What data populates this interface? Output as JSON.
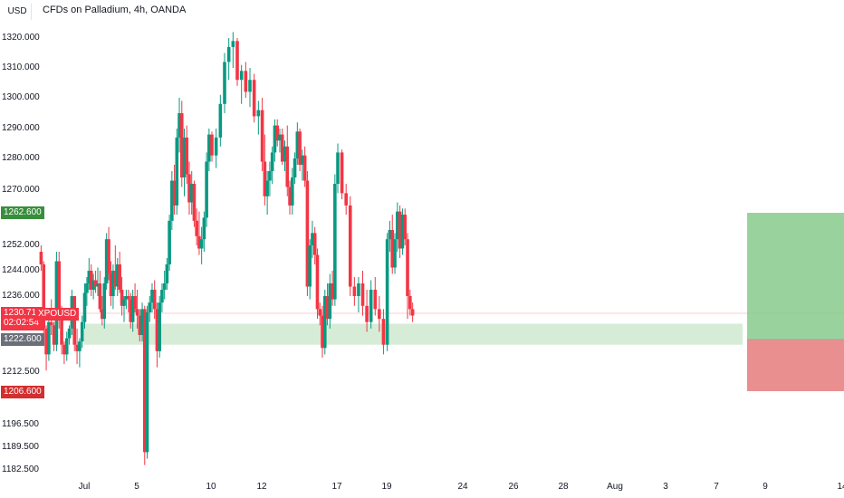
{
  "header": {
    "currency": "USD",
    "title": "CFDs on Palladium, 4h, OANDA"
  },
  "price_axis": {
    "ticks": [
      {
        "label": "1320.000",
        "value": 1320
      },
      {
        "label": "1310.000",
        "value": 1310
      },
      {
        "label": "1300.000",
        "value": 1300
      },
      {
        "label": "1290.000",
        "value": 1290
      },
      {
        "label": "1280.000",
        "value": 1280
      },
      {
        "label": "1270.000",
        "value": 1270
      },
      {
        "label": "1252.000",
        "value": 1252
      },
      {
        "label": "1244.000",
        "value": 1244
      },
      {
        "label": "1236.000",
        "value": 1236
      },
      {
        "label": "1212.500",
        "value": 1212.5
      },
      {
        "label": "1196.500",
        "value": 1196.5
      },
      {
        "label": "1189.500",
        "value": 1189.5
      },
      {
        "label": "1182.500",
        "value": 1182.5
      }
    ]
  },
  "date_axis": {
    "ticks": [
      {
        "label": "Jul",
        "day": 1
      },
      {
        "label": "5",
        "day": 5
      },
      {
        "label": "10",
        "day": 10
      },
      {
        "label": "12",
        "day": 12
      },
      {
        "label": "17",
        "day": 17
      },
      {
        "label": "19",
        "day": 19
      },
      {
        "label": "24",
        "day": 24
      },
      {
        "label": "26",
        "day": 26
      },
      {
        "label": "28",
        "day": 28
      },
      {
        "label": "Aug",
        "day": 32
      },
      {
        "label": "3",
        "day": 34
      },
      {
        "label": "7",
        "day": 38
      },
      {
        "label": "9",
        "day": 40
      },
      {
        "label": "14",
        "day": 45
      }
    ]
  },
  "tags": {
    "take_profit": "1262.600",
    "current_price": "1230.715",
    "countdown": "02:02:54",
    "symbol": "XPOUSD",
    "entry": "1222.600",
    "stop_loss": "1206.600"
  },
  "colors": {
    "up": "#089981",
    "down": "#f23645",
    "zone": "#c8e6c9",
    "profit": "#81c784",
    "loss": "#e57373"
  },
  "chart_data": {
    "type": "candlestick",
    "symbol": "XPOUSD",
    "interval": "4h",
    "candle_days_start": -1.8,
    "candle_step_days": 0.1667,
    "ohlc": [
      [
        1250,
        1252,
        1244,
        1246
      ],
      [
        1246,
        1247,
        1222,
        1226
      ],
      [
        1226,
        1227,
        1213,
        1218
      ],
      [
        1218,
        1230,
        1216,
        1228
      ],
      [
        1228,
        1235,
        1224,
        1227
      ],
      [
        1227,
        1228,
        1219,
        1221
      ],
      [
        1221,
        1250,
        1219,
        1247
      ],
      [
        1247,
        1250,
        1226,
        1229
      ],
      [
        1229,
        1233,
        1218,
        1221
      ],
      [
        1221,
        1222,
        1215,
        1218
      ],
      [
        1218,
        1225,
        1216,
        1223
      ],
      [
        1223,
        1227,
        1221,
        1226
      ],
      [
        1226,
        1238,
        1224,
        1236
      ],
      [
        1236,
        1236,
        1219,
        1221
      ],
      [
        1221,
        1226,
        1215,
        1219
      ],
      [
        1219,
        1223,
        1214,
        1222
      ],
      [
        1222,
        1230,
        1220,
        1228
      ],
      [
        1228,
        1240,
        1226,
        1237
      ],
      [
        1237,
        1242,
        1233,
        1240
      ],
      [
        1240,
        1248,
        1238,
        1244
      ],
      [
        1244,
        1246,
        1236,
        1238
      ],
      [
        1238,
        1243,
        1235,
        1241
      ],
      [
        1241,
        1244,
        1237,
        1239
      ],
      [
        1239,
        1245,
        1236,
        1240
      ],
      [
        1240,
        1244,
        1231,
        1232
      ],
      [
        1232,
        1236,
        1227,
        1229
      ],
      [
        1229,
        1242,
        1226,
        1240
      ],
      [
        1240,
        1256,
        1238,
        1254
      ],
      [
        1254,
        1258,
        1241,
        1243
      ],
      [
        1243,
        1247,
        1233,
        1236
      ],
      [
        1236,
        1246,
        1232,
        1244
      ],
      [
        1244,
        1252,
        1238,
        1239
      ],
      [
        1239,
        1248,
        1236,
        1246
      ],
      [
        1246,
        1250,
        1237,
        1238
      ],
      [
        1238,
        1242,
        1230,
        1233
      ],
      [
        1233,
        1236,
        1228,
        1235
      ],
      [
        1235,
        1238,
        1232,
        1236
      ],
      [
        1236,
        1238,
        1231,
        1235
      ],
      [
        1235,
        1237,
        1226,
        1228
      ],
      [
        1228,
        1238,
        1225,
        1236
      ],
      [
        1236,
        1240,
        1231,
        1232
      ],
      [
        1232,
        1238,
        1226,
        1230
      ],
      [
        1230,
        1232,
        1222,
        1224
      ],
      [
        1224,
        1234,
        1222,
        1232
      ],
      [
        1232,
        1233,
        1184,
        1188
      ],
      [
        1188,
        1233,
        1186,
        1231
      ],
      [
        1231,
        1236,
        1228,
        1234
      ],
      [
        1234,
        1240,
        1231,
        1238
      ],
      [
        1238,
        1241,
        1229,
        1232
      ],
      [
        1232,
        1234,
        1214,
        1219
      ],
      [
        1219,
        1236,
        1217,
        1234
      ],
      [
        1234,
        1240,
        1231,
        1238
      ],
      [
        1238,
        1244,
        1235,
        1240
      ],
      [
        1240,
        1248,
        1238,
        1246
      ],
      [
        1246,
        1262,
        1244,
        1260
      ],
      [
        1260,
        1276,
        1257,
        1273
      ],
      [
        1273,
        1278,
        1262,
        1265
      ],
      [
        1265,
        1290,
        1262,
        1287
      ],
      [
        1287,
        1300,
        1282,
        1295
      ],
      [
        1295,
        1299,
        1271,
        1274
      ],
      [
        1274,
        1290,
        1268,
        1287
      ],
      [
        1287,
        1291,
        1272,
        1275
      ],
      [
        1275,
        1279,
        1262,
        1266
      ],
      [
        1266,
        1276,
        1262,
        1272
      ],
      [
        1272,
        1273,
        1258,
        1260
      ],
      [
        1260,
        1264,
        1252,
        1255
      ],
      [
        1255,
        1263,
        1249,
        1251
      ],
      [
        1251,
        1258,
        1246,
        1254
      ],
      [
        1254,
        1263,
        1250,
        1261
      ],
      [
        1261,
        1282,
        1258,
        1279
      ],
      [
        1279,
        1290,
        1276,
        1288
      ],
      [
        1288,
        1289,
        1279,
        1281
      ],
      [
        1281,
        1290,
        1277,
        1287
      ],
      [
        1287,
        1301,
        1284,
        1298
      ],
      [
        1298,
        1315,
        1295,
        1312
      ],
      [
        1312,
        1320,
        1306,
        1317
      ],
      [
        1317,
        1322,
        1310,
        1319
      ],
      [
        1319,
        1320,
        1304,
        1306
      ],
      [
        1306,
        1311,
        1298,
        1309
      ],
      [
        1309,
        1312,
        1300,
        1302
      ],
      [
        1302,
        1310,
        1297,
        1306
      ],
      [
        1306,
        1308,
        1292,
        1294
      ],
      [
        1294,
        1299,
        1288,
        1296
      ],
      [
        1296,
        1300,
        1276,
        1279
      ],
      [
        1279,
        1288,
        1265,
        1268
      ],
      [
        1268,
        1276,
        1262,
        1273
      ],
      [
        1273,
        1279,
        1268,
        1276
      ],
      [
        1276,
        1284,
        1272,
        1282
      ],
      [
        1282,
        1293,
        1279,
        1291
      ],
      [
        1291,
        1293,
        1284,
        1286
      ],
      [
        1286,
        1290,
        1282,
        1288
      ],
      [
        1288,
        1290,
        1278,
        1279
      ],
      [
        1279,
        1286,
        1276,
        1284
      ],
      [
        1284,
        1291,
        1268,
        1271
      ],
      [
        1271,
        1273,
        1262,
        1265
      ],
      [
        1265,
        1277,
        1262,
        1274
      ],
      [
        1274,
        1282,
        1272,
        1280
      ],
      [
        1280,
        1292,
        1278,
        1289
      ],
      [
        1289,
        1290,
        1276,
        1278
      ],
      [
        1278,
        1283,
        1273,
        1281
      ],
      [
        1281,
        1284,
        1271,
        1273
      ],
      [
        1273,
        1276,
        1236,
        1239
      ],
      [
        1239,
        1254,
        1235,
        1252
      ],
      [
        1252,
        1260,
        1248,
        1256
      ],
      [
        1256,
        1258,
        1246,
        1249
      ],
      [
        1249,
        1251,
        1229,
        1232
      ],
      [
        1232,
        1234,
        1227,
        1230
      ],
      [
        1230,
        1233,
        1217,
        1220
      ],
      [
        1220,
        1238,
        1218,
        1236
      ],
      [
        1236,
        1240,
        1227,
        1229
      ],
      [
        1229,
        1243,
        1226,
        1240
      ],
      [
        1240,
        1244,
        1233,
        1235
      ],
      [
        1235,
        1275,
        1233,
        1272
      ],
      [
        1272,
        1285,
        1269,
        1282
      ],
      [
        1282,
        1283,
        1267,
        1269
      ],
      [
        1269,
        1272,
        1262,
        1265
      ],
      [
        1265,
        1268,
        1236,
        1239
      ],
      [
        1239,
        1242,
        1233,
        1236
      ],
      [
        1236,
        1242,
        1231,
        1240
      ],
      [
        1240,
        1244,
        1230,
        1233
      ],
      [
        1233,
        1238,
        1225,
        1228
      ],
      [
        1228,
        1241,
        1226,
        1238
      ],
      [
        1238,
        1242,
        1230,
        1232
      ],
      [
        1232,
        1236,
        1225,
        1229
      ],
      [
        1229,
        1232,
        1218,
        1221
      ],
      [
        1221,
        1256,
        1219,
        1254
      ],
      [
        1254,
        1260,
        1250,
        1257
      ],
      [
        1257,
        1262,
        1243,
        1245
      ],
      [
        1245,
        1256,
        1243,
        1254
      ],
      [
        1254,
        1266,
        1250,
        1263
      ],
      [
        1263,
        1265,
        1248,
        1251
      ],
      [
        1251,
        1264,
        1249,
        1262
      ],
      [
        1262,
        1264,
        1252,
        1254
      ],
      [
        1254,
        1256,
        1229,
        1236
      ],
      [
        1236,
        1238,
        1230,
        1232
      ],
      [
        1232,
        1234,
        1228,
        1230
      ]
    ],
    "entry_zone": [
      1221,
      1227.5
    ],
    "position": {
      "take_profit": 1262.6,
      "entry": 1222.6,
      "stop_loss": 1206.6
    },
    "current_price": 1230.715
  }
}
